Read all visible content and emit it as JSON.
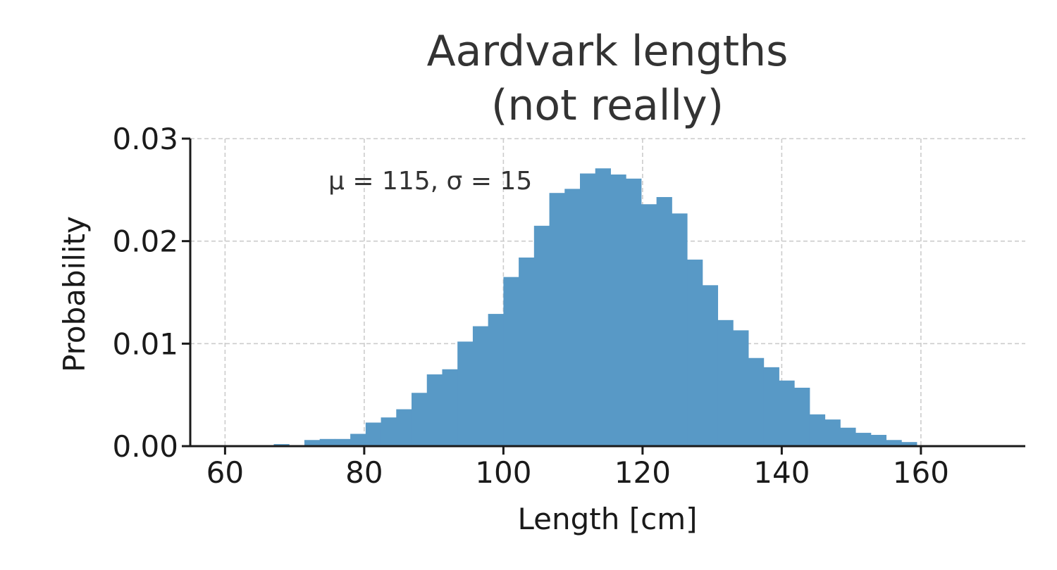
{
  "chart_data": {
    "type": "bar",
    "subtype": "histogram",
    "title_lines": [
      "Aardvark lengths",
      "(not really)"
    ],
    "xlabel": "Length [cm]",
    "ylabel": "Probability",
    "xlim": [
      55,
      175
    ],
    "ylim": [
      0,
      0.03
    ],
    "xticks": [
      60,
      80,
      100,
      120,
      140,
      160
    ],
    "xtick_labels": [
      "60",
      "80",
      "100",
      "120",
      "140",
      "160"
    ],
    "yticks": [
      0,
      0.01,
      0.02,
      0.03
    ],
    "ytick_labels": [
      "0.00",
      "0.01",
      "0.02",
      "0.03"
    ],
    "grid": true,
    "bar_color": "#5899c6",
    "annotation": "μ = 115,  σ = 15",
    "bin_edges": [
      60.4,
      62.6,
      64.8,
      67.0,
      69.2,
      71.4,
      73.6,
      75.8,
      78.0,
      80.2,
      82.4,
      84.6,
      86.8,
      89.0,
      91.2,
      93.4,
      95.6,
      97.8,
      100.0,
      102.2,
      104.4,
      106.6,
      108.8,
      111.0,
      113.2,
      115.4,
      117.6,
      119.8,
      122.0,
      124.2,
      126.4,
      128.6,
      130.8,
      133.0,
      135.2,
      137.4,
      139.6,
      141.8,
      144.0,
      146.2,
      148.4,
      150.6,
      152.8,
      155.0,
      157.2,
      159.4,
      161.6,
      163.8,
      166.0,
      168.2,
      170.4
    ],
    "values": [
      0.0,
      0.0,
      0.0001,
      0.0002,
      0.0001,
      0.0006,
      0.0007,
      0.0007,
      0.0012,
      0.0023,
      0.0028,
      0.0036,
      0.0052,
      0.007,
      0.0075,
      0.0102,
      0.0117,
      0.0129,
      0.0165,
      0.0184,
      0.0215,
      0.0247,
      0.0251,
      0.0266,
      0.0271,
      0.0265,
      0.0261,
      0.0236,
      0.0243,
      0.0227,
      0.0182,
      0.0157,
      0.0123,
      0.0113,
      0.0086,
      0.0077,
      0.0064,
      0.0057,
      0.0031,
      0.0026,
      0.0018,
      0.0013,
      0.0011,
      0.0006,
      0.0004,
      0.0001,
      0.0001,
      0.0,
      0.0,
      0.0001
    ]
  }
}
